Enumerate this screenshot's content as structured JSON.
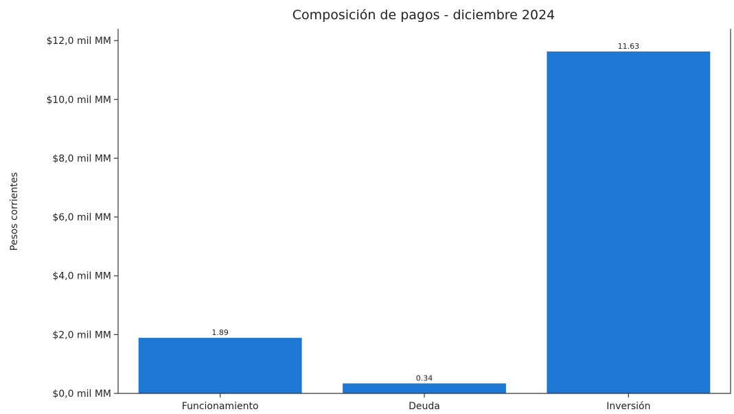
{
  "chart_data": {
    "type": "bar",
    "title": "Composición de pagos - diciembre 2024",
    "xlabel": "",
    "ylabel": "Pesos corrientes",
    "categories": [
      "Funcionamiento",
      "Deuda",
      "Inversión"
    ],
    "values": [
      1.89,
      0.34,
      11.63
    ],
    "data_labels": [
      "1.89",
      "0.34",
      "11.63"
    ],
    "ylim": [
      0,
      12.4
    ],
    "yticks": [
      0,
      2,
      4,
      6,
      8,
      10,
      12
    ],
    "ytick_labels": [
      "$0,0 mil MM",
      "$2,0 mil MM",
      "$4,0 mil MM",
      "$6,0 mil MM",
      "$8,0 mil MM",
      "$10,0 mil MM",
      "$12,0 mil MM"
    ],
    "bar_color": "#1f77d4",
    "grid": false,
    "legend": "none"
  }
}
